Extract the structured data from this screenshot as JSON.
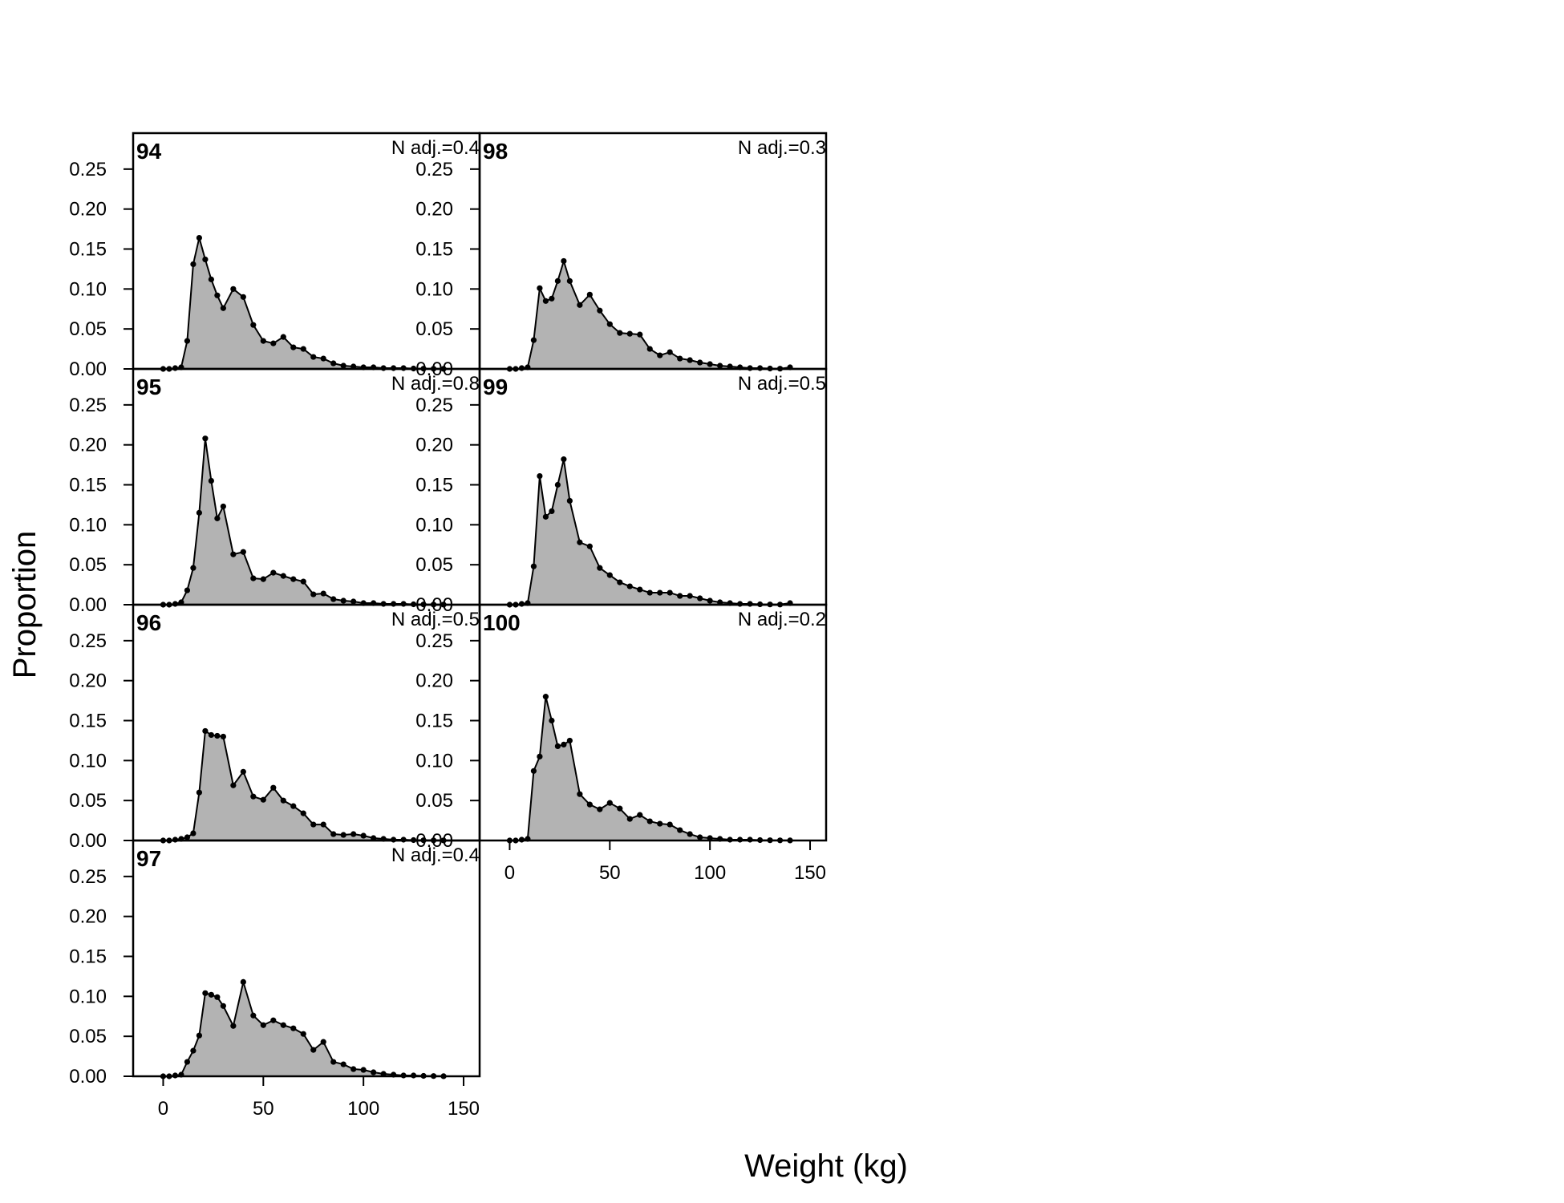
{
  "chart_data": {
    "type": "area",
    "xlabel": "Weight (kg)",
    "ylabel": "Proportion",
    "xlim": [
      -15,
      158
    ],
    "ylim": [
      0,
      0.295
    ],
    "xticks": [
      "0",
      "50",
      "100",
      "150"
    ],
    "yticks": [
      "0.00",
      "0.05",
      "0.10",
      "0.15",
      "0.20",
      "0.25"
    ],
    "x": [
      0,
      3,
      6,
      9,
      12,
      15,
      18,
      21,
      24,
      27,
      30,
      35,
      40,
      45,
      50,
      55,
      60,
      65,
      70,
      75,
      80,
      85,
      90,
      95,
      100,
      105,
      110,
      115,
      120,
      125,
      130,
      135,
      140
    ],
    "fill_color": "#b3b3b3",
    "line_color": "#000000",
    "panels": [
      {
        "label": "94",
        "note": "N adj.=0.4",
        "values": [
          0,
          0,
          0.001,
          0.002,
          0.035,
          0.131,
          0.164,
          0.137,
          0.112,
          0.092,
          0.076,
          0.1,
          0.09,
          0.055,
          0.035,
          0.032,
          0.04,
          0.027,
          0.025,
          0.015,
          0.013,
          0.007,
          0.004,
          0.003,
          0.002,
          0.002,
          0.001,
          0.001,
          0.001,
          0.0005,
          0.0003,
          0.0002,
          0.0001
        ]
      },
      {
        "label": "95",
        "note": "N adj.=0.8",
        "values": [
          0,
          0,
          0.001,
          0.003,
          0.018,
          0.046,
          0.115,
          0.208,
          0.155,
          0.108,
          0.123,
          0.063,
          0.066,
          0.033,
          0.032,
          0.04,
          0.036,
          0.032,
          0.029,
          0.013,
          0.014,
          0.007,
          0.005,
          0.004,
          0.002,
          0.002,
          0.001,
          0.001,
          0.001,
          0.0005,
          0.0003,
          0.0002,
          0.0001
        ]
      },
      {
        "label": "96",
        "note": "N adj.=0.5",
        "values": [
          0,
          0,
          0.001,
          0.002,
          0.004,
          0.009,
          0.06,
          0.137,
          0.132,
          0.131,
          0.13,
          0.069,
          0.086,
          0.055,
          0.051,
          0.066,
          0.05,
          0.043,
          0.034,
          0.02,
          0.02,
          0.008,
          0.007,
          0.008,
          0.006,
          0.003,
          0.002,
          0.001,
          0.001,
          0.0005,
          0.0003,
          0.0002,
          0.0001
        ]
      },
      {
        "label": "97",
        "note": "N adj.=0.4",
        "values": [
          0,
          0,
          0.001,
          0.002,
          0.018,
          0.032,
          0.051,
          0.104,
          0.102,
          0.099,
          0.088,
          0.063,
          0.118,
          0.076,
          0.064,
          0.07,
          0.064,
          0.06,
          0.053,
          0.033,
          0.043,
          0.018,
          0.015,
          0.009,
          0.008,
          0.005,
          0.003,
          0.002,
          0.001,
          0.001,
          0.0005,
          0.0003,
          0.0001
        ]
      },
      {
        "label": "98",
        "note": "N adj.=0.3",
        "values": [
          0,
          0,
          0.001,
          0.002,
          0.036,
          0.101,
          0.085,
          0.088,
          0.11,
          0.135,
          0.11,
          0.08,
          0.093,
          0.073,
          0.056,
          0.045,
          0.044,
          0.043,
          0.025,
          0.017,
          0.021,
          0.013,
          0.011,
          0.008,
          0.006,
          0.004,
          0.003,
          0.002,
          0.001,
          0.001,
          0.0005,
          0.0003,
          0.002
        ]
      },
      {
        "label": "99",
        "note": "N adj.=0.5",
        "values": [
          0,
          0,
          0.001,
          0.002,
          0.048,
          0.161,
          0.11,
          0.117,
          0.15,
          0.182,
          0.13,
          0.078,
          0.073,
          0.046,
          0.037,
          0.028,
          0.023,
          0.019,
          0.015,
          0.015,
          0.015,
          0.011,
          0.011,
          0.008,
          0.005,
          0.003,
          0.002,
          0.001,
          0.001,
          0.0005,
          0.0003,
          0.0002,
          0.002
        ]
      },
      {
        "label": "100",
        "note": "N adj.=0.2",
        "values": [
          0,
          0,
          0.001,
          0.002,
          0.087,
          0.105,
          0.18,
          0.15,
          0.118,
          0.12,
          0.125,
          0.058,
          0.045,
          0.039,
          0.047,
          0.04,
          0.027,
          0.032,
          0.024,
          0.021,
          0.02,
          0.013,
          0.008,
          0.004,
          0.003,
          0.002,
          0.001,
          0.001,
          0.001,
          0.0005,
          0.0003,
          0.0002,
          0.0001
        ]
      }
    ]
  }
}
